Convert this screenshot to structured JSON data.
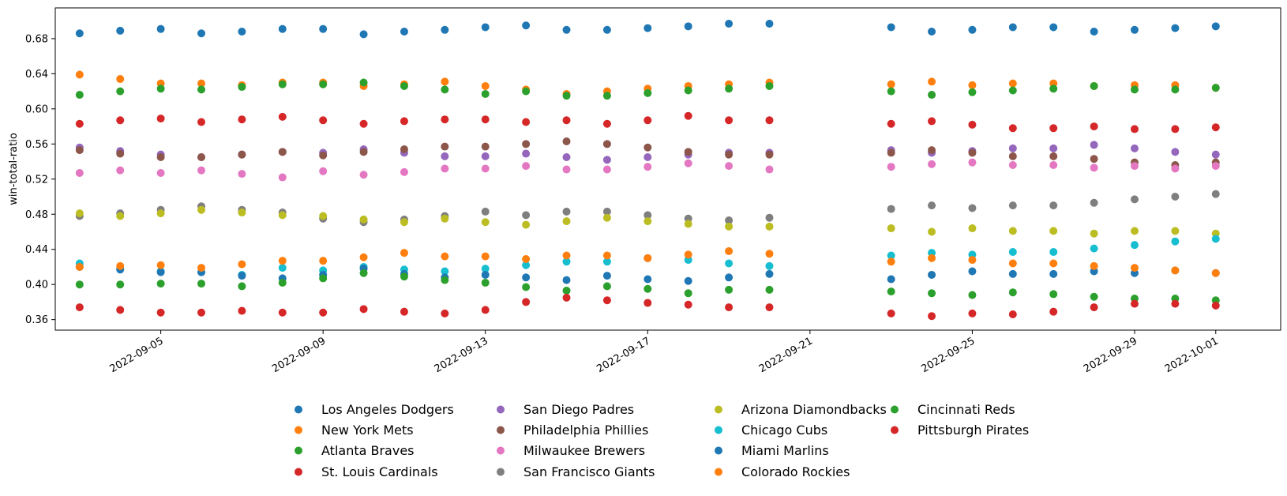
{
  "chart_data": {
    "type": "scatter",
    "title": "",
    "xlabel": "",
    "ylabel": "win-total-ratio",
    "x_ticks": [
      "2022-09-05",
      "2022-09-09",
      "2022-09-13",
      "2022-09-17",
      "2022-09-21",
      "2022-09-25",
      "2022-09-29",
      "2022-10-01"
    ],
    "y_ticks": [
      "0.36",
      "0.40",
      "0.44",
      "0.48",
      "0.52",
      "0.56",
      "0.60",
      "0.64",
      "0.68"
    ],
    "xlim": [
      "2022-09-02",
      "2022-10-02"
    ],
    "ylim": [
      0.348,
      0.715
    ],
    "grid": false,
    "legend_position": "bottom",
    "x": [
      "2022-09-03",
      "2022-09-04",
      "2022-09-05",
      "2022-09-06",
      "2022-09-07",
      "2022-09-08",
      "2022-09-09",
      "2022-09-10",
      "2022-09-11",
      "2022-09-12",
      "2022-09-13",
      "2022-09-14",
      "2022-09-15",
      "2022-09-16",
      "2022-09-17",
      "2022-09-18",
      "2022-09-19",
      "2022-09-20",
      "2022-09-23",
      "2022-09-24",
      "2022-09-25",
      "2022-09-26",
      "2022-09-27",
      "2022-09-28",
      "2022-09-29",
      "2022-09-30",
      "2022-10-01"
    ],
    "series": [
      {
        "name": "Los Angeles Dodgers",
        "color": "#1f77b4",
        "values": [
          0.686,
          0.689,
          0.691,
          0.686,
          0.688,
          0.691,
          0.691,
          0.685,
          0.688,
          0.69,
          0.693,
          0.695,
          0.69,
          0.69,
          0.692,
          0.694,
          0.697,
          0.697,
          0.693,
          0.688,
          0.69,
          0.693,
          0.693,
          0.688,
          0.69,
          0.692,
          0.694
        ]
      },
      {
        "name": "New York Mets",
        "color": "#ff7f0e",
        "values": [
          0.639,
          0.634,
          0.629,
          0.629,
          0.627,
          0.63,
          0.63,
          0.626,
          0.628,
          0.631,
          0.626,
          0.622,
          0.617,
          0.62,
          0.623,
          0.626,
          0.628,
          0.63,
          0.628,
          0.631,
          0.627,
          0.629,
          0.629,
          0.626,
          0.627,
          0.627,
          0.624
        ]
      },
      {
        "name": "Atlanta Braves",
        "color": "#2ca02c",
        "values": [
          0.616,
          0.62,
          0.623,
          0.622,
          0.625,
          0.628,
          0.628,
          0.63,
          0.626,
          0.622,
          0.617,
          0.62,
          0.615,
          0.615,
          0.618,
          0.621,
          0.623,
          0.626,
          0.62,
          0.616,
          0.619,
          0.621,
          0.623,
          0.626,
          0.622,
          0.622,
          0.624
        ]
      },
      {
        "name": "St. Louis Cardinals",
        "color": "#d62728",
        "values": [
          0.583,
          0.587,
          0.589,
          0.585,
          0.588,
          0.591,
          0.587,
          0.583,
          0.586,
          0.588,
          0.588,
          0.585,
          0.587,
          0.583,
          0.587,
          0.592,
          0.587,
          0.587,
          0.583,
          0.586,
          0.582,
          0.578,
          0.578,
          0.58,
          0.577,
          0.577,
          0.579
        ]
      },
      {
        "name": "San Diego Padres",
        "color": "#9467bd",
        "values": [
          0.556,
          0.552,
          0.548,
          0.545,
          0.548,
          0.551,
          0.55,
          0.554,
          0.55,
          0.546,
          0.546,
          0.549,
          0.545,
          0.542,
          0.545,
          0.548,
          0.55,
          0.55,
          0.553,
          0.55,
          0.552,
          0.555,
          0.555,
          0.559,
          0.555,
          0.551,
          0.548
        ]
      },
      {
        "name": "Philadelphia Phillies",
        "color": "#8c564b",
        "values": [
          0.553,
          0.549,
          0.545,
          0.545,
          0.548,
          0.551,
          0.547,
          0.551,
          0.554,
          0.557,
          0.557,
          0.56,
          0.563,
          0.56,
          0.556,
          0.551,
          0.548,
          0.548,
          0.55,
          0.553,
          0.55,
          0.546,
          0.546,
          0.543,
          0.539,
          0.536,
          0.539
        ]
      },
      {
        "name": "Milwaukee Brewers",
        "color": "#e377c2",
        "values": [
          0.527,
          0.53,
          0.527,
          0.53,
          0.526,
          0.522,
          0.529,
          0.525,
          0.528,
          0.532,
          0.532,
          0.535,
          0.531,
          0.531,
          0.534,
          0.538,
          0.535,
          0.531,
          0.534,
          0.537,
          0.539,
          0.536,
          0.536,
          0.533,
          0.535,
          0.532,
          0.535
        ]
      },
      {
        "name": "San Francisco Giants",
        "color": "#7f7f7f",
        "values": [
          0.478,
          0.481,
          0.485,
          0.489,
          0.485,
          0.482,
          0.475,
          0.471,
          0.474,
          0.478,
          0.483,
          0.479,
          0.483,
          0.483,
          0.479,
          0.475,
          0.473,
          0.476,
          0.486,
          0.49,
          0.487,
          0.49,
          0.49,
          0.493,
          0.497,
          0.5,
          0.503
        ]
      },
      {
        "name": "Arizona Diamondbacks",
        "color": "#bcbd22",
        "values": [
          0.481,
          0.478,
          0.481,
          0.485,
          0.482,
          0.479,
          0.478,
          0.474,
          0.471,
          0.475,
          0.471,
          0.468,
          0.472,
          0.476,
          0.472,
          0.469,
          0.466,
          0.466,
          0.464,
          0.46,
          0.464,
          0.461,
          0.461,
          0.458,
          0.461,
          0.461,
          0.458
        ]
      },
      {
        "name": "Chicago Cubs",
        "color": "#17becf",
        "values": [
          0.424,
          0.418,
          0.415,
          0.414,
          0.411,
          0.419,
          0.416,
          0.42,
          0.417,
          0.415,
          0.418,
          0.422,
          0.426,
          0.426,
          0.43,
          0.428,
          0.424,
          0.421,
          0.433,
          0.436,
          0.434,
          0.437,
          0.437,
          0.441,
          0.445,
          0.449,
          0.452
        ]
      },
      {
        "name": "Miami Marlins",
        "color": "#1f77b4",
        "values": [
          0.42,
          0.417,
          0.414,
          0.414,
          0.41,
          0.407,
          0.411,
          0.418,
          0.412,
          0.408,
          0.411,
          0.408,
          0.405,
          0.41,
          0.406,
          0.404,
          0.408,
          0.412,
          0.406,
          0.411,
          0.415,
          0.412,
          0.412,
          0.415,
          0.413,
          0.416,
          0.413
        ]
      },
      {
        "name": "Colorado Rockies",
        "color": "#ff7f0e",
        "values": [
          0.42,
          0.421,
          0.422,
          0.419,
          0.423,
          0.427,
          0.427,
          0.431,
          0.436,
          0.432,
          0.432,
          0.429,
          0.433,
          0.433,
          0.43,
          0.434,
          0.438,
          0.435,
          0.426,
          0.43,
          0.428,
          0.424,
          0.424,
          0.421,
          0.419,
          0.416,
          0.413
        ]
      },
      {
        "name": "Cincinnati Reds",
        "color": "#2ca02c",
        "values": [
          0.4,
          0.4,
          0.401,
          0.401,
          0.398,
          0.402,
          0.407,
          0.413,
          0.409,
          0.405,
          0.402,
          0.397,
          0.393,
          0.398,
          0.395,
          0.39,
          0.394,
          0.394,
          0.392,
          0.39,
          0.388,
          0.391,
          0.389,
          0.386,
          0.384,
          0.384,
          0.382
        ]
      },
      {
        "name": "Pittsburgh Pirates",
        "color": "#d62728",
        "values": [
          0.374,
          0.371,
          0.368,
          0.368,
          0.37,
          0.368,
          0.368,
          0.372,
          0.369,
          0.367,
          0.371,
          0.38,
          0.385,
          0.382,
          0.379,
          0.377,
          0.374,
          0.374,
          0.367,
          0.364,
          0.367,
          0.366,
          0.369,
          0.374,
          0.378,
          0.378,
          0.376
        ]
      }
    ]
  }
}
